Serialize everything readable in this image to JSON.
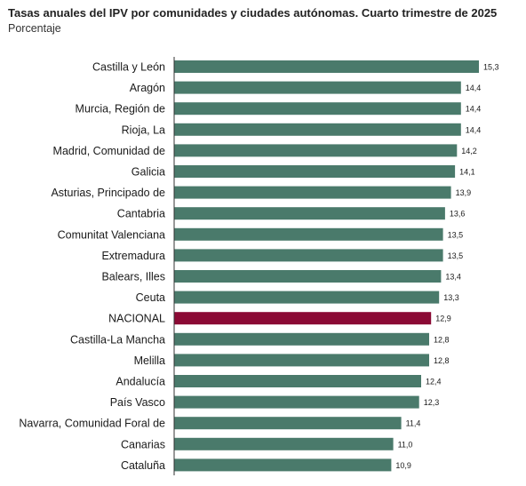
{
  "title": "Tasas anuales del IPV por comunidades y ciudades autónomas. Cuarto trimestre de 2025",
  "subtitle": "Porcentaje",
  "colors": {
    "bar": "#4a7a6b",
    "highlight": "#8b0a35",
    "axis": "#333333"
  },
  "chart_data": {
    "type": "bar",
    "orientation": "horizontal",
    "categories": [
      "Castilla y León",
      "Aragón",
      "Murcia, Región de",
      "Rioja, La",
      "Madrid, Comunidad de",
      "Galicia",
      "Asturias, Principado de",
      "Cantabria",
      "Comunitat Valenciana",
      "Extremadura",
      "Balears, Illes",
      "Ceuta",
      "NACIONAL",
      "Castilla-La Mancha",
      "Melilla",
      "Andalucía",
      "País Vasco",
      "Navarra, Comunidad Foral de",
      "Canarias",
      "Cataluña"
    ],
    "values": [
      15.3,
      14.4,
      14.4,
      14.4,
      14.2,
      14.1,
      13.9,
      13.6,
      13.5,
      13.5,
      13.4,
      13.3,
      12.9,
      12.8,
      12.8,
      12.4,
      12.3,
      11.4,
      11.0,
      10.9
    ],
    "value_labels": [
      "15,3",
      "14,4",
      "14,4",
      "14,4",
      "14,2",
      "14,1",
      "13,9",
      "13,6",
      "13,5",
      "13,5",
      "13,4",
      "13,3",
      "12,9",
      "12,8",
      "12,8",
      "12,4",
      "12,3",
      "11,4",
      "11,0",
      "10,9"
    ],
    "highlight_category": "NACIONAL",
    "xlim": [
      0,
      15.3
    ],
    "grid": false,
    "legend": "none"
  }
}
